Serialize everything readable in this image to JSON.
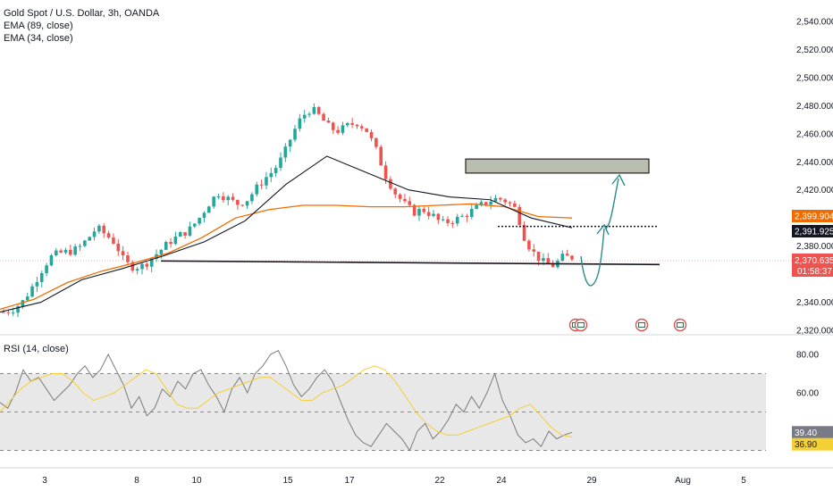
{
  "header": {
    "title": "Gold Spot / U.S. Dollar, 3h, OANDA",
    "indicators": [
      "EMA (89, close)",
      "EMA (34, close)"
    ]
  },
  "rsi_panel": {
    "title": "RSI (14, close)"
  },
  "colors": {
    "up": "#26a69a",
    "down": "#ef5350",
    "ema89": "#ef6c00",
    "ema34": "#131722",
    "rsi": "#7b7b7b",
    "rsi_ma": "#f5d033",
    "box_fill": "#b9bfb0",
    "arrow": "#2a8c8c"
  },
  "price_labels": {
    "ema89": "2,399.904",
    "level": "2,391.925",
    "last": "2,370.635",
    "countdown": "01:58:37"
  },
  "rsi_labels": {
    "rsi": "39.40",
    "ma": "36.90"
  },
  "chart_data": [
    {
      "type": "candlestick",
      "title": "Gold Spot / U.S. Dollar, 3h, OANDA",
      "y_ticks": [
        "2,540.000",
        "2,520.000",
        "2,500.000",
        "2,480.000",
        "2,460.000",
        "2,440.000",
        "2,420.000",
        "2,380.000",
        "2,340.000",
        "2,320.000"
      ],
      "y_tick_values": [
        2540,
        2520,
        2500,
        2480,
        2460,
        2440,
        2420,
        2380,
        2340,
        2320
      ],
      "ylim": [
        2318,
        2548
      ],
      "x_ticks": [
        "3",
        "8",
        "10",
        "15",
        "17",
        "22",
        "24",
        "29",
        "Aug",
        "5"
      ],
      "series": [
        {
          "name": "EMA (89, close)",
          "last": 2399.904
        },
        {
          "name": "EMA (34, close)"
        }
      ],
      "close_path": [
        2333,
        2335,
        2340,
        2350,
        2362,
        2372,
        2375,
        2376,
        2378,
        2385,
        2393,
        2388,
        2382,
        2368,
        2365,
        2366,
        2372,
        2378,
        2384,
        2388,
        2392,
        2400,
        2410,
        2418,
        2414,
        2410,
        2412,
        2420,
        2428,
        2434,
        2444,
        2460,
        2472,
        2478,
        2472,
        2464,
        2462,
        2466,
        2468,
        2462,
        2448,
        2430,
        2418,
        2410,
        2404,
        2406,
        2402,
        2396,
        2398,
        2400,
        2404,
        2408,
        2412,
        2414,
        2412,
        2406,
        2384,
        2374,
        2368,
        2366,
        2372,
        2372
      ],
      "ema89_path": [
        2335,
        2342,
        2354,
        2362,
        2368,
        2375,
        2386,
        2400,
        2406,
        2409,
        2409,
        2408,
        2408,
        2409,
        2410,
        2408,
        2401,
        2400
      ],
      "ema34_path": [
        2333,
        2340,
        2356,
        2364,
        2373,
        2383,
        2398,
        2424,
        2444,
        2432,
        2420,
        2415,
        2413,
        2400,
        2393
      ],
      "support_level": 2367.5,
      "resistance_zone": [
        2432,
        2442
      ],
      "dotted_level": 2394
    },
    {
      "type": "line",
      "title": "RSI (14, close)",
      "y_ticks": [
        "80.00",
        "60.00"
      ],
      "y_tick_values": [
        80,
        60
      ],
      "bands": [
        70,
        50,
        30
      ],
      "ylim": [
        24,
        86
      ],
      "series": [
        {
          "name": "RSI (14, close)",
          "last": 39.4
        },
        {
          "name": "",
          "last": 36.9
        }
      ],
      "rsi_path": [
        55,
        52,
        60,
        72,
        66,
        68,
        62,
        56,
        60,
        64,
        70,
        74,
        68,
        72,
        80,
        72,
        64,
        52,
        58,
        48,
        52,
        62,
        58,
        66,
        62,
        70,
        72,
        64,
        58,
        50,
        62,
        68,
        60,
        70,
        74,
        80,
        82,
        74,
        64,
        58,
        62,
        68,
        72,
        66,
        56,
        46,
        38,
        34,
        32,
        38,
        44,
        40,
        36,
        30,
        40,
        44,
        36,
        40,
        46,
        54,
        50,
        58,
        52,
        60,
        70,
        56,
        48,
        38,
        34,
        36,
        32,
        40,
        36,
        38,
        39.4
      ],
      "rsi_ma_path": [
        50,
        56,
        62,
        66,
        68,
        70,
        70,
        66,
        60,
        56,
        58,
        60,
        64,
        68,
        72,
        70,
        62,
        54,
        52,
        52,
        56,
        60,
        62,
        64,
        66,
        68,
        68,
        64,
        60,
        56,
        56,
        60,
        62,
        64,
        68,
        72,
        74,
        72,
        66,
        58,
        50,
        44,
        40,
        38,
        38,
        40,
        42,
        44,
        46,
        48,
        52,
        54,
        48,
        42,
        38,
        36.9
      ]
    }
  ]
}
